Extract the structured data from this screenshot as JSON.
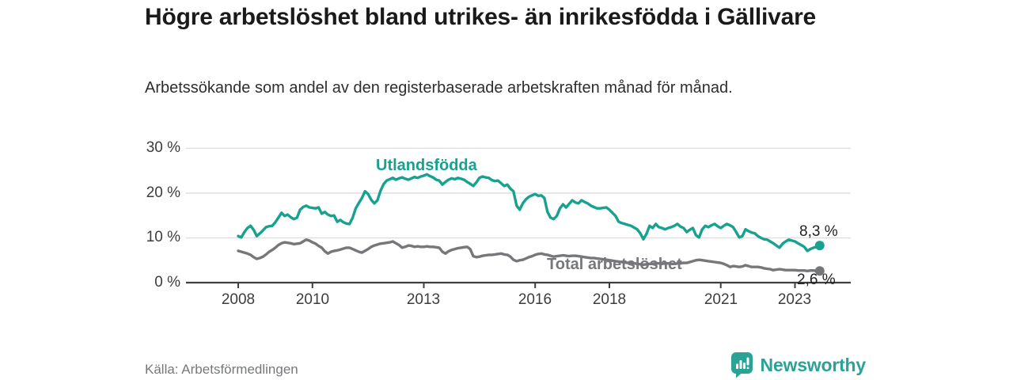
{
  "header": {
    "title": "Högre arbetslöshet bland utrikes- än inrikesfödda i Gällivare",
    "subtitle": "Arbetssökande som andel av den registerbaserade arbetskraften månad för månad."
  },
  "footer": {
    "source": "Källa: Arbetsförmedlingen",
    "brand_name": "Newsworthy"
  },
  "colors": {
    "foreign_born_line": "#17a28f",
    "total_line": "#76777a",
    "grid": "#dcdcdc",
    "axis": "#3f3f3f",
    "brand_teal": "#2aa396"
  },
  "chart_data": {
    "type": "line",
    "title": "Högre arbetslöshet bland utrikes- än inrikesfödda i Gällivare",
    "subtitle": "Arbetssökande som andel av den registerbaserade arbetskraften månad för månad.",
    "frequency": "monthly",
    "x_start_year": 2008,
    "x_end_year_fraction": 2023.67,
    "ylim": [
      0,
      31
    ],
    "grid": true,
    "y_ticks": [
      0,
      10,
      20,
      30
    ],
    "y_tick_labels": [
      "0 %",
      "10 %",
      "20 %",
      "30 %"
    ],
    "x_tick_years": [
      2008,
      2010,
      2013,
      2016,
      2018,
      2021,
      2023
    ],
    "x_tick_labels": [
      "2008",
      "2010",
      "2013",
      "2016",
      "2018",
      "2021",
      "2023"
    ],
    "series": [
      {
        "name": "Utlandsfödda",
        "color": "#17a28f",
        "end_label": "8,3 %",
        "end_value": 8.3,
        "values": [
          10.4,
          10.1,
          11.3,
          12.2,
          12.7,
          11.8,
          10.4,
          11.0,
          11.7,
          12.4,
          12.6,
          12.7,
          13.5,
          14.5,
          15.6,
          14.9,
          15.2,
          14.6,
          14.2,
          14.5,
          16.3,
          16.9,
          17.2,
          16.8,
          16.7,
          16.6,
          16.8,
          15.4,
          15.8,
          15.2,
          14.9,
          15.0,
          13.6,
          14.0,
          13.5,
          13.2,
          13.1,
          14.5,
          16.6,
          17.8,
          18.9,
          20.4,
          19.8,
          18.5,
          17.7,
          18.4,
          20.5,
          22.0,
          22.8,
          23.1,
          23.4,
          23.0,
          23.3,
          23.5,
          23.2,
          23.0,
          23.3,
          23.6,
          23.4,
          23.7,
          23.9,
          24.2,
          23.8,
          23.5,
          23.0,
          22.8,
          21.9,
          22.5,
          23.0,
          23.3,
          23.1,
          23.4,
          23.2,
          23.0,
          22.5,
          22.1,
          21.6,
          22.4,
          23.4,
          23.7,
          23.5,
          23.4,
          22.9,
          22.7,
          22.8,
          22.2,
          21.6,
          21.9,
          21.0,
          20.4,
          17.2,
          16.3,
          17.7,
          18.6,
          19.2,
          19.5,
          19.8,
          19.4,
          19.5,
          18.9,
          15.8,
          14.5,
          14.2,
          14.9,
          16.6,
          17.5,
          16.8,
          17.6,
          18.4,
          17.9,
          17.7,
          18.4,
          18.0,
          17.7,
          17.2,
          16.9,
          16.6,
          16.6,
          16.7,
          16.8,
          16.3,
          15.6,
          14.9,
          13.6,
          13.3,
          13.1,
          12.9,
          12.7,
          12.3,
          11.9,
          11.0,
          9.7,
          10.9,
          12.7,
          12.2,
          13.1,
          12.4,
          12.2,
          11.9,
          12.2,
          12.4,
          12.7,
          13.1,
          12.5,
          12.2,
          11.3,
          11.8,
          12.2,
          10.6,
          10.1,
          11.9,
          12.7,
          12.4,
          12.8,
          13.1,
          12.6,
          12.2,
          12.7,
          13.1,
          12.8,
          12.4,
          11.3,
          10.1,
          10.4,
          11.9,
          11.5,
          11.2,
          11.0,
          10.4,
          10.0,
          9.7,
          9.6,
          9.2,
          8.8,
          8.3,
          7.8,
          8.7,
          9.2,
          9.6,
          9.4,
          9.2,
          8.8,
          8.4,
          8.0,
          7.1,
          7.5,
          7.8,
          8.0,
          8.3
        ]
      },
      {
        "name": "Total arbetslöshet",
        "color": "#76777a",
        "end_label": "2,6 %",
        "end_value": 2.6,
        "values": [
          7.1,
          6.9,
          6.7,
          6.5,
          6.2,
          5.7,
          5.3,
          5.5,
          5.8,
          6.3,
          6.9,
          7.3,
          7.8,
          8.4,
          8.8,
          9.0,
          8.9,
          8.8,
          8.6,
          8.7,
          8.8,
          9.2,
          9.6,
          9.4,
          9.0,
          8.7,
          8.2,
          7.8,
          7.0,
          6.5,
          6.9,
          7.1,
          7.2,
          7.4,
          7.6,
          7.8,
          7.8,
          7.5,
          7.2,
          6.9,
          6.7,
          7.1,
          7.5,
          8.0,
          8.3,
          8.5,
          8.7,
          8.8,
          8.9,
          9.0,
          9.2,
          8.8,
          8.4,
          7.8,
          8.0,
          8.3,
          8.2,
          8.0,
          8.1,
          8.0,
          8.0,
          8.1,
          8.0,
          8.0,
          7.9,
          7.8,
          6.9,
          6.5,
          7.0,
          7.3,
          7.5,
          7.7,
          7.8,
          7.9,
          8.0,
          7.5,
          5.9,
          5.7,
          5.8,
          6.0,
          6.1,
          6.2,
          6.2,
          6.3,
          6.4,
          6.5,
          6.3,
          6.2,
          5.8,
          5.1,
          4.8,
          5.0,
          5.1,
          5.4,
          5.7,
          5.9,
          6.2,
          6.4,
          6.5,
          6.3,
          6.2,
          6.0,
          5.8,
          5.9,
          6.0,
          6.1,
          6.0,
          5.9,
          6.0,
          6.0,
          5.9,
          5.8,
          5.7,
          5.6,
          5.5,
          5.5,
          5.4,
          5.3,
          5.2,
          5.1,
          5.0,
          4.9,
          4.8,
          4.7,
          4.6,
          4.5,
          4.4,
          4.4,
          4.3,
          4.2,
          4.1,
          4.0,
          4.1,
          4.2,
          4.2,
          4.3,
          4.3,
          4.2,
          4.3,
          4.3,
          4.2,
          4.2,
          4.3,
          4.3,
          4.4,
          4.4,
          4.6,
          4.8,
          5.0,
          5.1,
          5.0,
          4.9,
          4.8,
          4.7,
          4.6,
          4.5,
          4.4,
          4.2,
          3.9,
          3.5,
          3.7,
          3.6,
          3.5,
          3.6,
          3.9,
          3.7,
          3.5,
          3.5,
          3.5,
          3.4,
          3.2,
          3.1,
          3.0,
          2.8,
          2.9,
          3.0,
          2.9,
          2.8,
          2.8,
          2.8,
          2.8,
          2.7,
          2.7,
          2.7,
          2.6,
          2.7,
          2.7,
          2.6,
          2.6
        ]
      }
    ]
  }
}
